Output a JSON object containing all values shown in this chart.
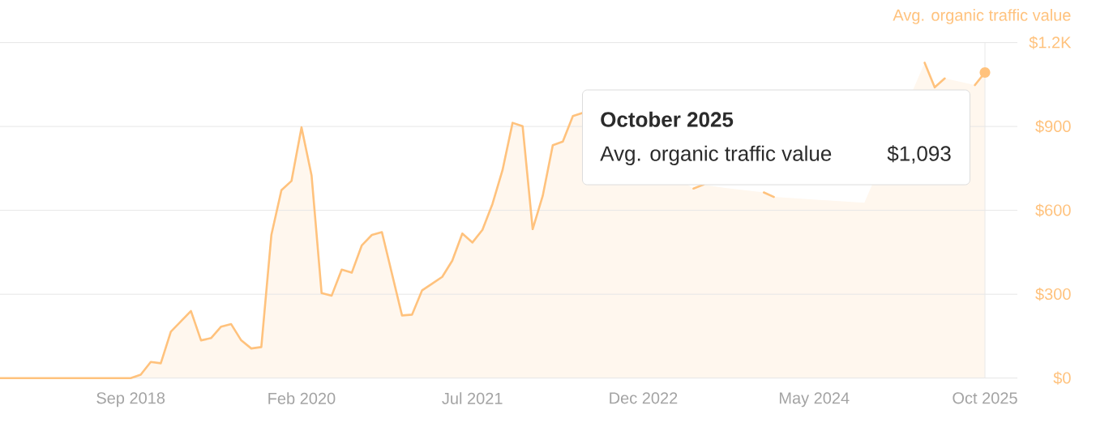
{
  "chart_data": {
    "type": "area",
    "ylabel": "Avg. organic traffic value",
    "color": "#ffc27d",
    "x": [
      "2017-08",
      "2017-09",
      "2017-10",
      "2017-11",
      "2017-12",
      "2018-01",
      "2018-02",
      "2018-03",
      "2018-04",
      "2018-05",
      "2018-06",
      "2018-07",
      "2018-08",
      "2018-09",
      "2018-10",
      "2018-11",
      "2018-12",
      "2019-01",
      "2019-02",
      "2019-03",
      "2019-04",
      "2019-05",
      "2019-06",
      "2019-07",
      "2019-08",
      "2019-09",
      "2019-10",
      "2019-11",
      "2019-12",
      "2020-01",
      "2020-02",
      "2020-03",
      "2020-04",
      "2020-05",
      "2020-06",
      "2020-07",
      "2020-08",
      "2020-09",
      "2020-10",
      "2020-11",
      "2020-12",
      "2021-01",
      "2021-02",
      "2021-03",
      "2021-04",
      "2021-05",
      "2021-06",
      "2021-07",
      "2021-08",
      "2021-09",
      "2021-10",
      "2021-11",
      "2021-12",
      "2022-01",
      "2022-02",
      "2022-03",
      "2022-04",
      "2022-05",
      "2022-06",
      "2022-07",
      "2022-08",
      "2022-09",
      "2022-10",
      "2022-11",
      "2022-12",
      "2023-01",
      "2023-02",
      "2023-03",
      "2023-04",
      "2023-05",
      "2023-06",
      "2023-07",
      "2023-08",
      "2023-09",
      "2023-10",
      "2023-11",
      "2023-12",
      "2024-01",
      "2024-02",
      "2024-03",
      "2024-04",
      "2024-05",
      "2024-06",
      "2024-07",
      "2024-08",
      "2024-09",
      "2024-10",
      "2024-11",
      "2024-12",
      "2025-01",
      "2025-02",
      "2025-03",
      "2025-04",
      "2025-05",
      "2025-06",
      "2025-07",
      "2025-08",
      "2025-09",
      "2025-10"
    ],
    "values": [
      0,
      0,
      0,
      0,
      0,
      0,
      0,
      0,
      0,
      0,
      0,
      0,
      0,
      0,
      12,
      58,
      53,
      166,
      203,
      240,
      135,
      143,
      184,
      193,
      135,
      106,
      111,
      512,
      672,
      705,
      897,
      725,
      304,
      295,
      388,
      377,
      475,
      512,
      522,
      373,
      224,
      227,
      314,
      338,
      362,
      420,
      517,
      485,
      530,
      623,
      744,
      913,
      901,
      533,
      652,
      833,
      846,
      937,
      949,
      null,
      null,
      null,
      null,
      null,
      null,
      null,
      null,
      null,
      null,
      678,
      692,
      null,
      681,
      null,
      null,
      null,
      664,
      648,
      null,
      null,
      null,
      null,
      null,
      null,
      null,
      null,
      627,
      null,
      null,
      null,
      null,
      null,
      1128,
      1040,
      1072,
      null,
      null,
      1048,
      1093
    ],
    "xlim": [
      "2017-08",
      "2026-01-08"
    ],
    "ylim": [
      0,
      1200
    ],
    "xticks": [
      {
        "value": "2018-09",
        "label": "Sep 2018"
      },
      {
        "value": "2020-02",
        "label": "Feb 2020"
      },
      {
        "value": "2021-07",
        "label": "Jul 2021"
      },
      {
        "value": "2022-12",
        "label": "Dec 2022"
      },
      {
        "value": "2024-05",
        "label": "May 2024"
      },
      {
        "value": "2025-10",
        "label": "Oct 2025"
      }
    ],
    "yticks": [
      {
        "value": 0,
        "label": "$0"
      },
      {
        "value": 300,
        "label": "$300"
      },
      {
        "value": 600,
        "label": "$600"
      },
      {
        "value": 900,
        "label": "$900"
      },
      {
        "value": 1200,
        "label": "$1.2K"
      }
    ],
    "grid": "y",
    "ref_lines": [
      {
        "axis": "x",
        "value": "2025-10",
        "color": "#e8e8e8"
      }
    ],
    "annotations": [
      "October 2025",
      "Avg. organic traffic value",
      "$1,093"
    ]
  }
}
